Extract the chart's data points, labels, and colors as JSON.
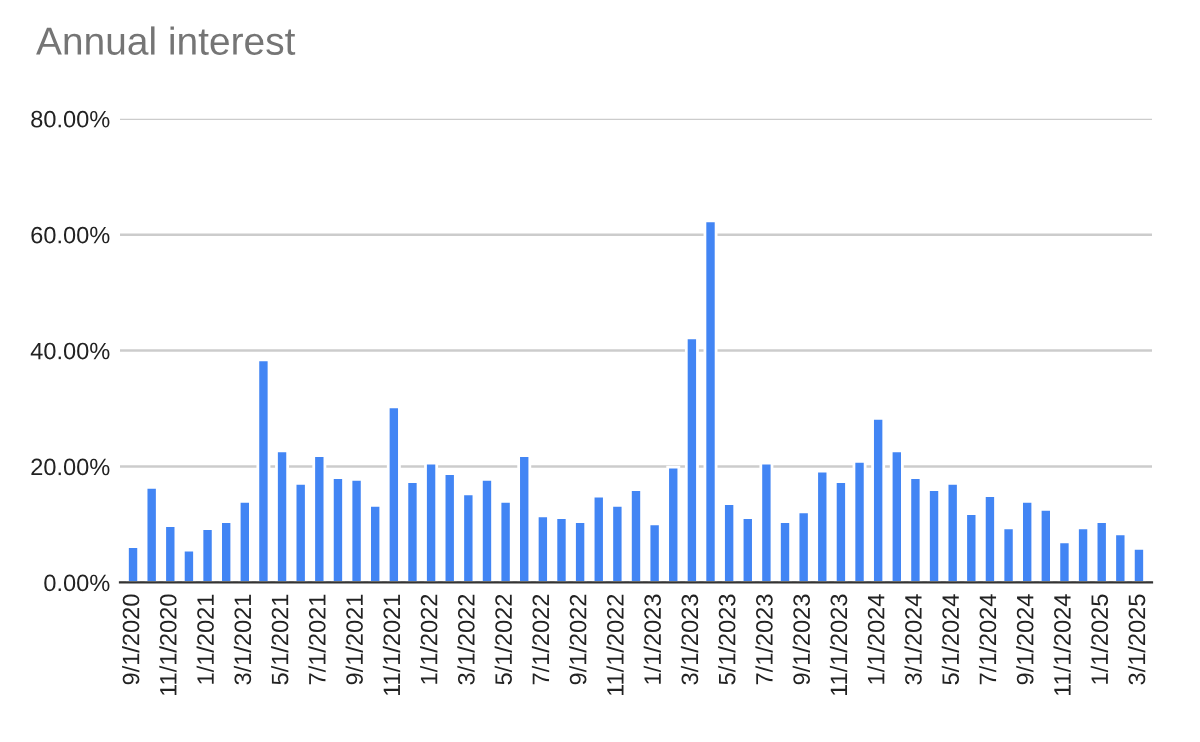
{
  "chart_data": {
    "type": "bar",
    "title": "Annual interest",
    "categories": [
      "9/1/2020",
      null,
      "11/1/2020",
      null,
      "1/1/2021",
      null,
      "3/1/2021",
      null,
      "5/1/2021",
      null,
      "7/1/2021",
      null,
      "9/1/2021",
      null,
      "11/1/2021",
      null,
      "1/1/2022",
      null,
      "3/1/2022",
      null,
      "5/1/2022",
      null,
      "7/1/2022",
      null,
      "9/1/2022",
      null,
      "11/1/2022",
      null,
      "1/1/2023",
      null,
      "3/1/2023",
      null,
      "5/1/2023",
      null,
      "7/1/2023",
      null,
      "9/1/2023",
      null,
      "11/1/2023",
      null,
      "1/1/2024",
      null,
      "3/1/2024",
      null,
      "5/1/2024",
      null,
      "7/1/2024",
      null,
      "9/1/2024",
      null,
      "11/1/2024",
      null,
      "1/1/2025",
      null,
      "3/1/2025"
    ],
    "values": [
      6.2,
      16.4,
      9.8,
      5.6,
      9.3,
      10.5,
      14.0,
      38.4,
      22.7,
      17.1,
      21.9,
      18.1,
      17.8,
      13.3,
      30.3,
      17.4,
      20.6,
      18.8,
      15.3,
      17.8,
      14.0,
      21.9,
      11.5,
      11.2,
      10.5,
      14.9,
      13.3,
      16.0,
      10.1,
      19.9,
      42.2,
      62.4,
      13.6,
      11.2,
      20.6,
      10.5,
      12.2,
      19.2,
      17.4,
      20.9,
      28.3,
      22.7,
      18.1,
      16.0,
      17.1,
      11.9,
      15.0,
      9.4,
      14.0,
      12.6,
      7.0,
      9.4,
      10.5,
      8.4,
      5.9
    ],
    "color": "#4285f4",
    "ylim": [
      0,
      80
    ],
    "yticks": [
      {
        "value": 0,
        "label": "0.00%"
      },
      {
        "value": 20,
        "label": "20.00%"
      },
      {
        "value": 40,
        "label": "40.00%"
      },
      {
        "value": 60,
        "label": "60.00%"
      },
      {
        "value": 80,
        "label": "80.00%"
      }
    ],
    "grid": "y",
    "legend": false
  }
}
